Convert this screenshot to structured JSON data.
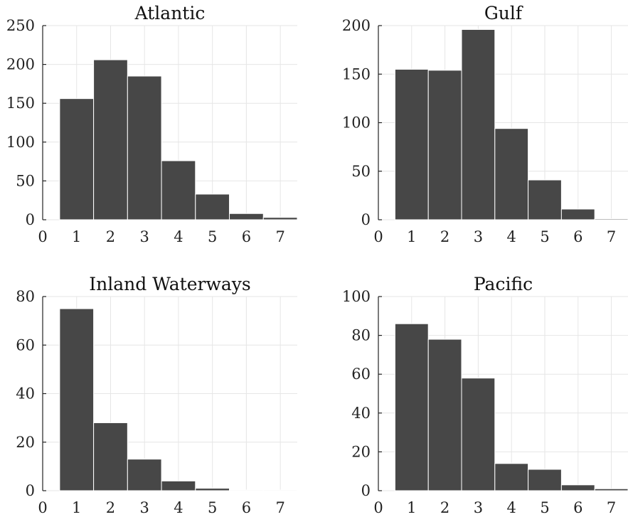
{
  "chart_data": [
    {
      "type": "bar",
      "title": "Atlantic",
      "categories": [
        "1",
        "2",
        "3",
        "4",
        "5",
        "6",
        "7"
      ],
      "values": [
        156,
        206,
        185,
        76,
        33,
        8,
        3
      ],
      "xlim": [
        0,
        7.5
      ],
      "xticks": [
        "0",
        "1",
        "2",
        "3",
        "4",
        "5",
        "6",
        "7"
      ],
      "ylim": [
        0,
        250
      ],
      "yticks": [
        "0",
        "50",
        "100",
        "150",
        "200",
        "250"
      ],
      "grid": true,
      "color": "#474747"
    },
    {
      "type": "bar",
      "title": "Gulf",
      "categories": [
        "1",
        "2",
        "3",
        "4",
        "5",
        "6",
        "7"
      ],
      "values": [
        155,
        154,
        196,
        94,
        41,
        11,
        1
      ],
      "xlim": [
        0,
        7.5
      ],
      "xticks": [
        "0",
        "1",
        "2",
        "3",
        "4",
        "5",
        "6",
        "7"
      ],
      "ylim": [
        0,
        200
      ],
      "yticks": [
        "0",
        "50",
        "100",
        "150",
        "200"
      ],
      "grid": true,
      "color": "#474747"
    },
    {
      "type": "bar",
      "title": "Inland Waterways",
      "categories": [
        "1",
        "2",
        "3",
        "4",
        "5",
        "6",
        "7"
      ],
      "values": [
        75,
        28,
        13,
        4,
        1,
        0.3,
        0.3
      ],
      "xlim": [
        0,
        7.5
      ],
      "xticks": [
        "0",
        "1",
        "2",
        "3",
        "4",
        "5",
        "6",
        "7"
      ],
      "ylim": [
        0,
        80
      ],
      "yticks": [
        "0",
        "20",
        "40",
        "60",
        "80"
      ],
      "grid": true,
      "color": "#474747"
    },
    {
      "type": "bar",
      "title": "Pacific",
      "categories": [
        "1",
        "2",
        "3",
        "4",
        "5",
        "6",
        "7"
      ],
      "values": [
        86,
        78,
        58,
        14,
        11,
        3,
        1
      ],
      "xlim": [
        0,
        7.5
      ],
      "xticks": [
        "0",
        "1",
        "2",
        "3",
        "4",
        "5",
        "6",
        "7"
      ],
      "ylim": [
        0,
        100
      ],
      "yticks": [
        "0",
        "20",
        "40",
        "60",
        "80",
        "100"
      ],
      "grid": true,
      "color": "#474747"
    }
  ]
}
